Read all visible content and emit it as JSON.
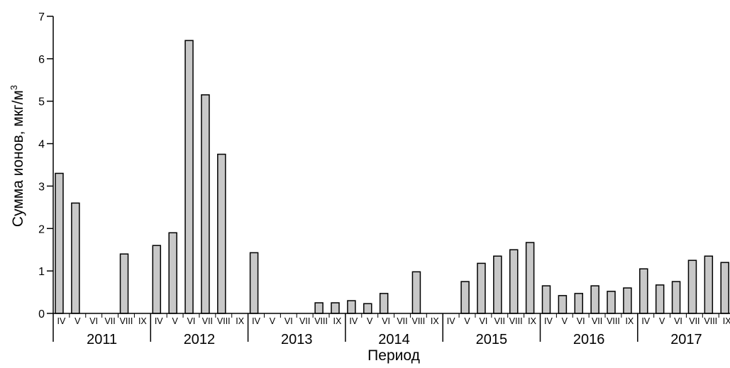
{
  "chart_data": {
    "type": "bar",
    "title": "",
    "xlabel": "Период",
    "ylabel": "Сумма ионов, мкг/м",
    "ylabel_superscript": "3",
    "ylim": [
      0,
      7
    ],
    "y_ticks": [
      0,
      1,
      2,
      3,
      4,
      5,
      6,
      7
    ],
    "grid": false,
    "bar_color": "#c8c8c8",
    "bar_edge_color": "#000000",
    "months": [
      "IV",
      "V",
      "VI",
      "VII",
      "VIII",
      "IX"
    ],
    "groups": [
      {
        "year": "2011",
        "values": [
          3.3,
          2.6,
          0,
          0,
          1.4,
          0
        ]
      },
      {
        "year": "2012",
        "values": [
          1.6,
          1.9,
          6.43,
          5.15,
          3.75,
          0
        ]
      },
      {
        "year": "2013",
        "values": [
          1.43,
          0,
          0,
          0,
          0.25,
          0.25
        ]
      },
      {
        "year": "2014",
        "values": [
          0.3,
          0.23,
          0.47,
          0,
          0.98,
          0
        ]
      },
      {
        "year": "2015",
        "values": [
          0,
          0.75,
          1.18,
          1.35,
          1.5,
          1.67
        ]
      },
      {
        "year": "2016",
        "values": [
          0.65,
          0.42,
          0.47,
          0.65,
          0.52,
          0.6
        ]
      },
      {
        "year": "2017",
        "values": [
          1.05,
          0.67,
          0.75,
          1.25,
          1.35,
          1.2
        ]
      }
    ]
  }
}
